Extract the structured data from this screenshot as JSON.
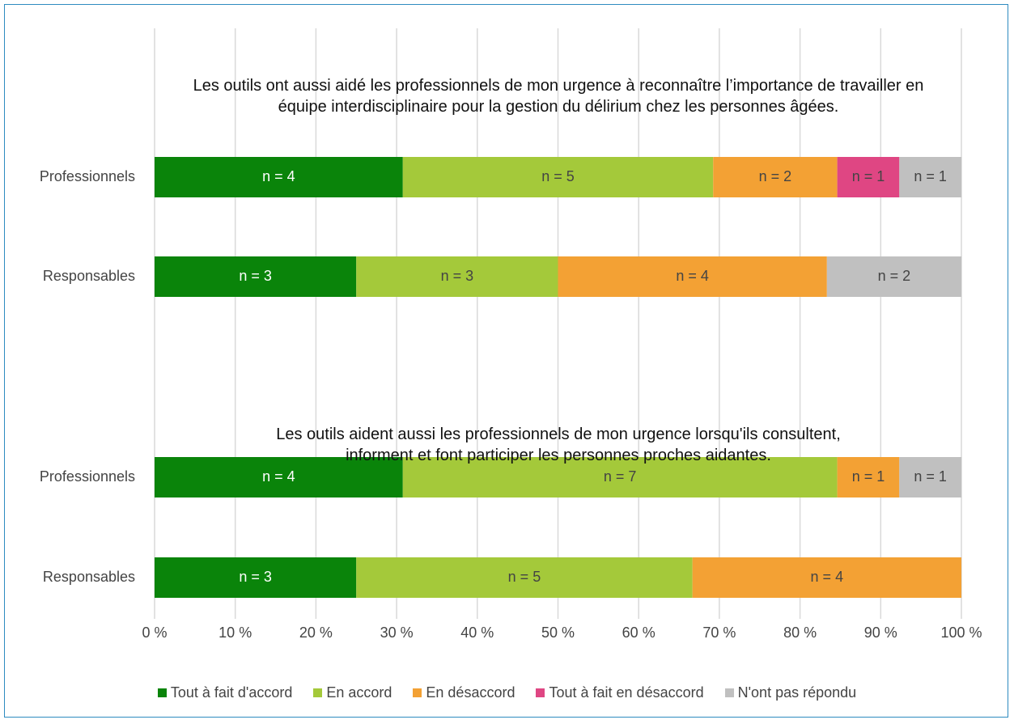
{
  "chart_data": {
    "type": "bar",
    "orientation": "horizontal",
    "stack": "percent",
    "xlim": [
      0,
      100
    ],
    "xticks": [
      {
        "value": 0,
        "label": "0 %"
      },
      {
        "value": 10,
        "label": "10 %"
      },
      {
        "value": 20,
        "label": "20 %"
      },
      {
        "value": 30,
        "label": "30 %"
      },
      {
        "value": 40,
        "label": "40 %"
      },
      {
        "value": 50,
        "label": "50 %"
      },
      {
        "value": 60,
        "label": "60 %"
      },
      {
        "value": 70,
        "label": "70 %"
      },
      {
        "value": 80,
        "label": "80 %"
      },
      {
        "value": 90,
        "label": "90 %"
      },
      {
        "value": 100,
        "label": "100 %"
      }
    ],
    "grid": true,
    "legend": "bottom",
    "series": [
      {
        "name": "Tout à fait d'accord",
        "color": "#0a840a"
      },
      {
        "name": "En accord",
        "color": "#a4c93a"
      },
      {
        "name": "En désaccord",
        "color": "#f3a134"
      },
      {
        "name": "Tout à fait en désaccord",
        "color": "#df4683"
      },
      {
        "name": "N'ont pas répondu",
        "color": "#c0c0c0"
      }
    ],
    "groups": [
      {
        "title": "Les outils ont aussi aidé les professionnels de mon urgence à reconnaître l’importance de travailler en équipe interdisciplinaire pour la gestion du délirium chez les personnes âgées.",
        "categories": [
          "Professionnels",
          "Responsables"
        ],
        "values": [
          [
            4,
            5,
            2,
            1,
            1
          ],
          [
            3,
            3,
            4,
            0,
            2
          ]
        ],
        "value_labels": [
          [
            "n = 4",
            "n = 5",
            "n = 2",
            "n = 1",
            "n = 1"
          ],
          [
            "n = 3",
            "n = 3",
            "n = 4",
            null,
            "n = 2"
          ]
        ]
      },
      {
        "title": "Les outils aident aussi les professionnels de mon urgence lorsqu'ils consultent, informent et font participer les personnes proches aidantes.",
        "categories": [
          "Professionnels",
          "Responsables"
        ],
        "values": [
          [
            4,
            7,
            1,
            0,
            1
          ],
          [
            3,
            5,
            4,
            0,
            0
          ]
        ],
        "value_labels": [
          [
            "n = 4",
            "n = 7",
            "n = 1",
            null,
            "n = 1"
          ],
          [
            "n = 3",
            "n = 5",
            "n = 4",
            null,
            null
          ]
        ]
      }
    ]
  }
}
